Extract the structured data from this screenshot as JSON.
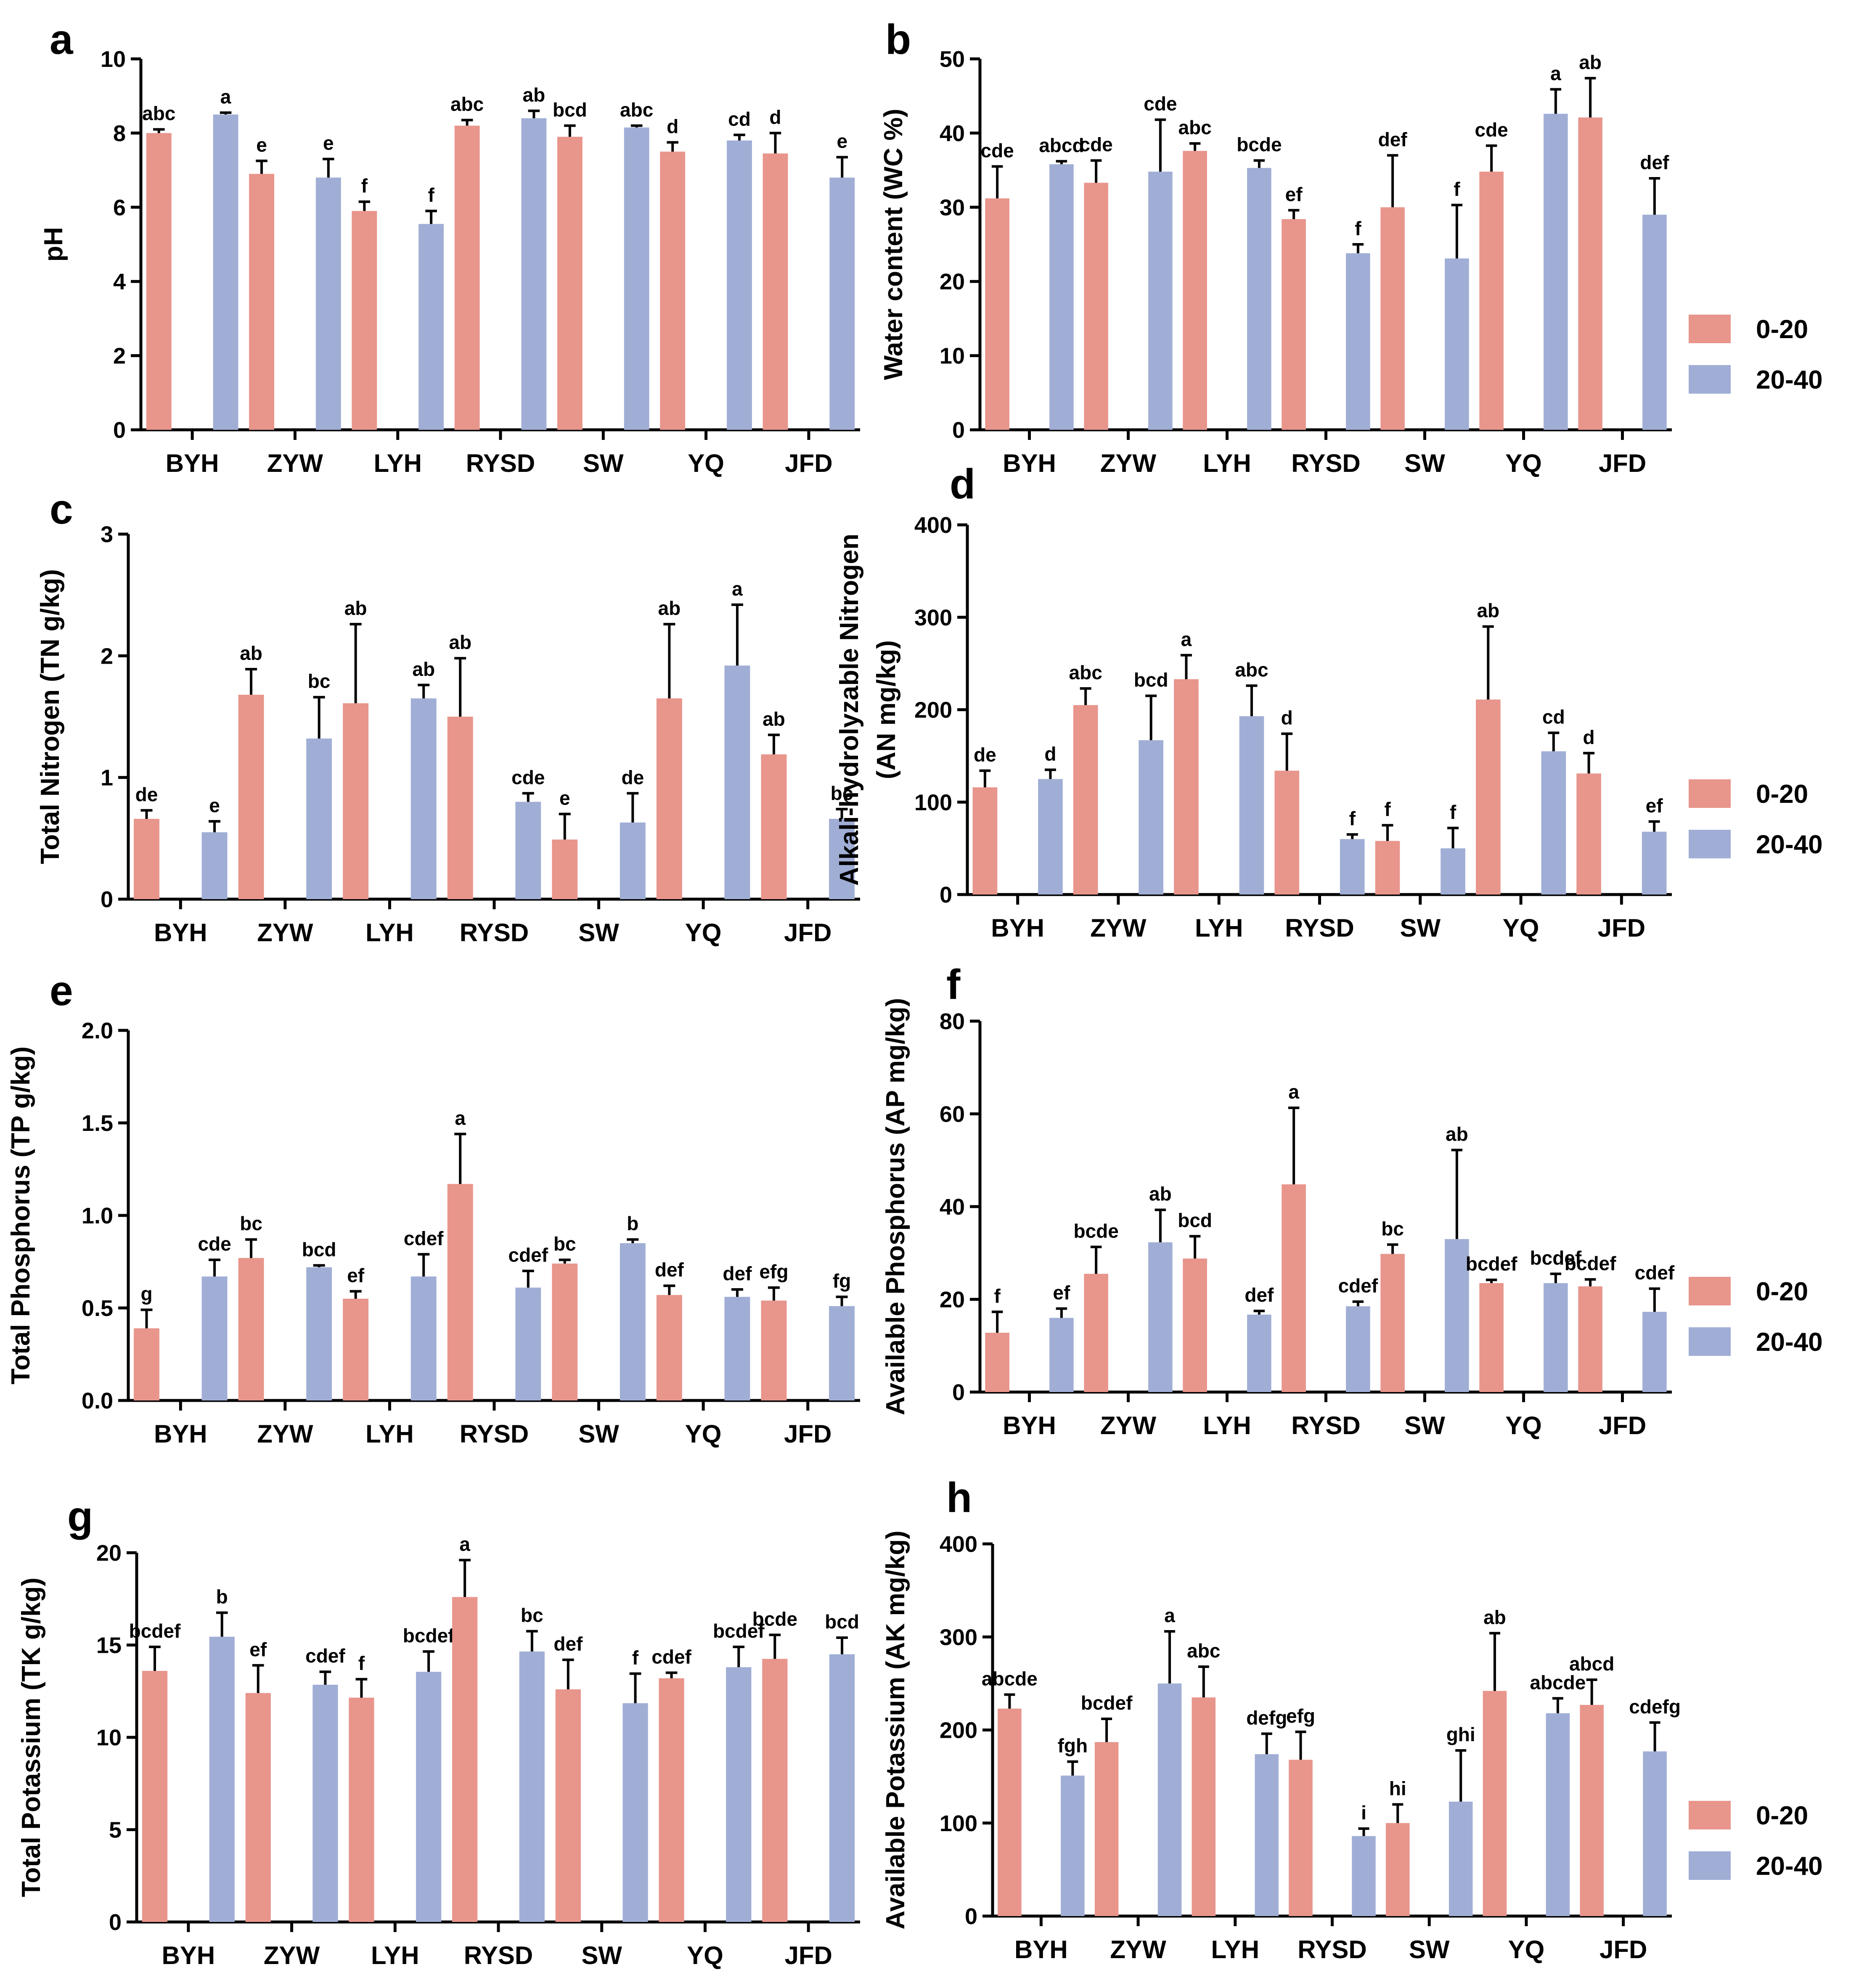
{
  "colors": {
    "depth_0_20": "#E8958C",
    "depth_20_40": "#A0AED6",
    "axis": "#000000"
  },
  "legend": {
    "items": [
      "0-20",
      "20-40"
    ]
  },
  "chart_data": [
    {
      "id": "a",
      "panel_letter": "a",
      "type": "bar",
      "ylabel_lines": [
        "pH"
      ],
      "ylim": [
        0,
        10
      ],
      "yticks": [
        0,
        2,
        4,
        6,
        8,
        10
      ],
      "ytick_labels": [
        "0",
        "2",
        "4",
        "6",
        "8",
        "10"
      ],
      "categories": [
        "BYH",
        "ZYW",
        "LYH",
        "RYSD",
        "SW",
        "YQ",
        "JFD"
      ],
      "series": [
        {
          "name": "0-20",
          "values": [
            8.0,
            6.9,
            5.9,
            8.2,
            7.9,
            7.5,
            7.45
          ],
          "errors": [
            0.1,
            0.35,
            0.25,
            0.15,
            0.3,
            0.25,
            0.55
          ],
          "labels": [
            "abc",
            "e",
            "f",
            "abc",
            "bcd",
            "d",
            "d"
          ]
        },
        {
          "name": "20-40",
          "values": [
            8.5,
            6.8,
            5.55,
            8.4,
            8.15,
            7.8,
            6.8
          ],
          "errors": [
            0.05,
            0.5,
            0.35,
            0.2,
            0.05,
            0.15,
            0.55
          ],
          "labels": [
            "a",
            "e",
            "f",
            "ab",
            "abc",
            "cd",
            "e"
          ]
        }
      ]
    },
    {
      "id": "b",
      "panel_letter": "b",
      "type": "bar",
      "ylabel_lines": [
        "Water content (WC %)"
      ],
      "ylim": [
        0,
        50
      ],
      "yticks": [
        0,
        10,
        20,
        30,
        40,
        50
      ],
      "ytick_labels": [
        "0",
        "10",
        "20",
        "30",
        "40",
        "50"
      ],
      "categories": [
        "BYH",
        "ZYW",
        "LYH",
        "RYSD",
        "SW",
        "YQ",
        "JFD"
      ],
      "series": [
        {
          "name": "0-20",
          "values": [
            31.2,
            33.3,
            37.6,
            28.4,
            30.0,
            34.8,
            42.1
          ],
          "errors": [
            4.3,
            3.0,
            1.0,
            1.2,
            7.0,
            3.5,
            5.3
          ],
          "labels": [
            "cde",
            "cde",
            "abc",
            "ef",
            "def",
            "cde",
            "ab"
          ]
        },
        {
          "name": "20-40",
          "values": [
            35.8,
            34.8,
            35.3,
            23.8,
            23.1,
            42.6,
            29.0
          ],
          "errors": [
            0.4,
            7.0,
            1.0,
            1.2,
            7.2,
            3.3,
            4.9
          ],
          "labels": [
            "abcd",
            "cde",
            "bcde",
            "f",
            "f",
            "a",
            "def"
          ]
        }
      ],
      "legend": "right"
    },
    {
      "id": "c",
      "panel_letter": "c",
      "type": "bar",
      "ylabel_lines": [
        "Total Nitrogen (TN g/kg)"
      ],
      "ylim": [
        0,
        3
      ],
      "yticks": [
        0,
        1,
        2,
        3
      ],
      "ytick_labels": [
        "0",
        "1",
        "2",
        "3"
      ],
      "categories": [
        "BYH",
        "ZYW",
        "LYH",
        "RYSD",
        "SW",
        "YQ",
        "JFD"
      ],
      "series": [
        {
          "name": "0-20",
          "values": [
            0.66,
            1.68,
            1.61,
            1.5,
            0.49,
            1.65,
            1.19
          ],
          "errors": [
            0.07,
            0.21,
            0.65,
            0.48,
            0.21,
            0.61,
            0.16
          ],
          "labels": [
            "de",
            "ab",
            "ab",
            "ab",
            "e",
            "ab",
            "ab"
          ]
        },
        {
          "name": "20-40",
          "values": [
            0.55,
            1.32,
            1.65,
            0.8,
            0.63,
            1.92,
            0.66
          ],
          "errors": [
            0.09,
            0.34,
            0.11,
            0.07,
            0.24,
            0.5,
            0.08
          ],
          "labels": [
            "e",
            "bc",
            "ab",
            "cde",
            "de",
            "a",
            "bc"
          ]
        }
      ]
    },
    {
      "id": "d",
      "panel_letter": "d",
      "type": "bar",
      "ylabel_lines": [
        "Alkali-hydrolyzable Nitrogen",
        "(AN mg/kg)"
      ],
      "ylim": [
        0,
        400
      ],
      "yticks": [
        0,
        100,
        200,
        300,
        400
      ],
      "ytick_labels": [
        "0",
        "100",
        "200",
        "300",
        "400"
      ],
      "categories": [
        "BYH",
        "ZYW",
        "LYH",
        "RYSD",
        "SW",
        "YQ",
        "JFD"
      ],
      "series": [
        {
          "name": "0-20",
          "values": [
            116,
            205,
            233,
            134,
            58,
            211,
            131
          ],
          "errors": [
            18,
            18,
            26,
            40,
            17,
            79,
            22
          ],
          "labels": [
            "de",
            "abc",
            "a",
            "d",
            "f",
            "ab",
            "d"
          ]
        },
        {
          "name": "20-40",
          "values": [
            125,
            167,
            193,
            60,
            50,
            155,
            68
          ],
          "errors": [
            10,
            48,
            33,
            5,
            22,
            20,
            11
          ],
          "labels": [
            "d",
            "bcd",
            "abc",
            "f",
            "f",
            "cd",
            "ef"
          ]
        }
      ],
      "legend": "right"
    },
    {
      "id": "e",
      "panel_letter": "e",
      "type": "bar",
      "ylabel_lines": [
        "Total Phosphorus (TP g/kg)"
      ],
      "ylim": [
        0,
        2
      ],
      "yticks": [
        0,
        0.5,
        1,
        1.5,
        2
      ],
      "ytick_labels": [
        "0.0",
        "0.5",
        "1.0",
        "1.5",
        "2.0"
      ],
      "categories": [
        "BYH",
        "ZYW",
        "LYH",
        "RYSD",
        "SW",
        "YQ",
        "JFD"
      ],
      "series": [
        {
          "name": "0-20",
          "values": [
            0.39,
            0.77,
            0.55,
            1.17,
            0.74,
            0.57,
            0.54
          ],
          "errors": [
            0.1,
            0.1,
            0.04,
            0.27,
            0.02,
            0.05,
            0.07
          ],
          "labels": [
            "g",
            "bc",
            "ef",
            "a",
            "bc",
            "def",
            "efg"
          ]
        },
        {
          "name": "20-40",
          "values": [
            0.67,
            0.72,
            0.67,
            0.61,
            0.85,
            0.56,
            0.51
          ],
          "errors": [
            0.09,
            0.01,
            0.12,
            0.09,
            0.02,
            0.04,
            0.05
          ],
          "labels": [
            "cde",
            "bcd",
            "cdef",
            "cdef",
            "b",
            "def",
            "fg"
          ]
        }
      ]
    },
    {
      "id": "f",
      "panel_letter": "f",
      "type": "bar",
      "ylabel_lines": [
        "Available Phosphorus (AP mg/kg)"
      ],
      "ylim": [
        0,
        80
      ],
      "yticks": [
        0,
        20,
        40,
        60,
        80
      ],
      "ytick_labels": [
        "0",
        "20",
        "40",
        "60",
        "80"
      ],
      "categories": [
        "BYH",
        "ZYW",
        "LYH",
        "RYSD",
        "SW",
        "YQ",
        "JFD"
      ],
      "series": [
        {
          "name": "0-20",
          "values": [
            12.8,
            25.5,
            28.8,
            44.8,
            29.8,
            23.5,
            22.8
          ],
          "errors": [
            4.5,
            5.8,
            4.8,
            16.5,
            2.0,
            0.7,
            1.5
          ],
          "labels": [
            "f",
            "bcde",
            "bcd",
            "a",
            "bc",
            "bcdef",
            "bcdef"
          ]
        },
        {
          "name": "20-40",
          "values": [
            16.0,
            32.3,
            16.7,
            18.5,
            33.0,
            23.5,
            17.3
          ],
          "errors": [
            2.0,
            7.0,
            0.8,
            1.0,
            19.2,
            2.0,
            5.0
          ],
          "labels": [
            "ef",
            "ab",
            "def",
            "cdef",
            "ab",
            "bcdef",
            "cdef"
          ]
        }
      ],
      "legend": "right"
    },
    {
      "id": "g",
      "panel_letter": "g",
      "type": "bar",
      "ylabel_lines": [
        "Total Potassium (TK g/kg)"
      ],
      "ylim": [
        0,
        20
      ],
      "yticks": [
        0,
        5,
        10,
        15,
        20
      ],
      "ytick_labels": [
        "0",
        "5",
        "10",
        "15",
        "20"
      ],
      "categories": [
        "BYH",
        "ZYW",
        "LYH",
        "RYSD",
        "SW",
        "YQ",
        "JFD"
      ],
      "series": [
        {
          "name": "0-20",
          "values": [
            13.6,
            12.4,
            12.15,
            17.6,
            12.6,
            13.2,
            14.25
          ],
          "errors": [
            1.3,
            1.5,
            1.0,
            2.0,
            1.6,
            0.3,
            1.3
          ],
          "labels": [
            "bcdef",
            "ef",
            "f",
            "a",
            "def",
            "cdef",
            "bcde"
          ]
        },
        {
          "name": "20-40",
          "values": [
            15.45,
            12.85,
            13.55,
            14.65,
            11.85,
            13.8,
            14.5
          ],
          "errors": [
            1.3,
            0.7,
            1.1,
            1.1,
            1.6,
            1.1,
            0.9
          ],
          "labels": [
            "b",
            "cdef",
            "bcdef",
            "bc",
            "f",
            "bcdef",
            "bcd"
          ]
        }
      ]
    },
    {
      "id": "h",
      "panel_letter": "h",
      "type": "bar",
      "ylabel_lines": [
        "Available Potassium (AK mg/kg)"
      ],
      "ylim": [
        0,
        400
      ],
      "yticks": [
        0,
        100,
        200,
        300,
        400
      ],
      "ytick_labels": [
        "0",
        "100",
        "200",
        "300",
        "400"
      ],
      "categories": [
        "BYH",
        "ZYW",
        "LYH",
        "RYSD",
        "SW",
        "YQ",
        "JFD"
      ],
      "series": [
        {
          "name": "0-20",
          "values": [
            223,
            187,
            235,
            168,
            100,
            242,
            227
          ],
          "errors": [
            15,
            25,
            33,
            30,
            20,
            62,
            27
          ],
          "labels": [
            "abcde",
            "bcdef",
            "abc",
            "efg",
            "hi",
            "ab",
            "abcd"
          ]
        },
        {
          "name": "20-40",
          "values": [
            151,
            250,
            174,
            86,
            123,
            218,
            177
          ],
          "errors": [
            15,
            56,
            22,
            8,
            55,
            16,
            31
          ],
          "labels": [
            "fgh",
            "a",
            "defg",
            "i",
            "ghi",
            "abcde",
            "cdefg"
          ]
        }
      ],
      "legend": "right"
    }
  ]
}
